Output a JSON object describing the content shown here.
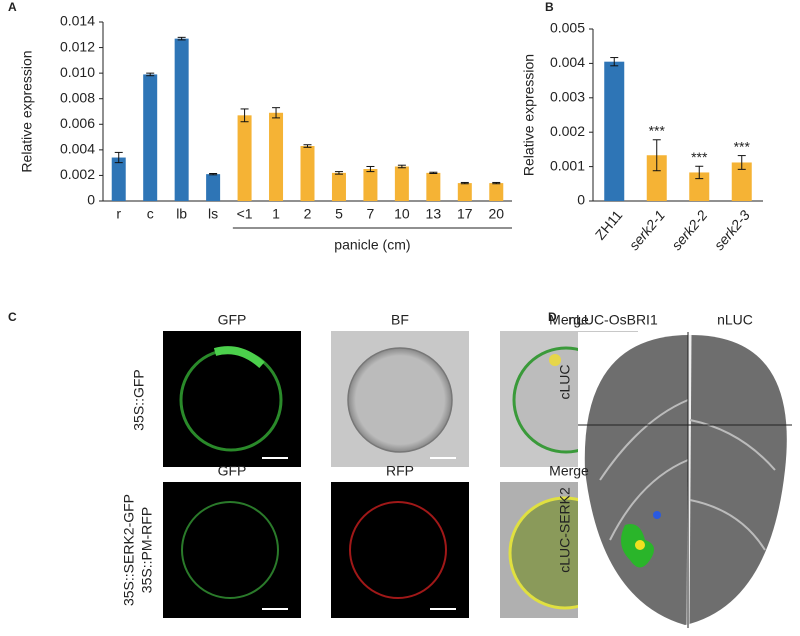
{
  "chart_data": [
    {
      "type": "bar",
      "panel": "A",
      "ylabel": "Relative expression",
      "group_label": "panicle (cm)",
      "categories": [
        "r",
        "c",
        "lb",
        "ls",
        "<1",
        "1",
        "2",
        "5",
        "7",
        "10",
        "13",
        "17",
        "20"
      ],
      "values": [
        0.0034,
        0.0099,
        0.0127,
        0.0021,
        0.0067,
        0.0069,
        0.0043,
        0.0022,
        0.0025,
        0.0027,
        0.0022,
        0.0014,
        0.0014
      ],
      "errors": [
        0.0004,
        0.0001,
        0.0001,
        5e-05,
        0.0005,
        0.0004,
        0.0001,
        0.0001,
        0.0002,
        0.0001,
        5e-05,
        5e-05,
        5e-05
      ],
      "colors": [
        "#2e75b6",
        "#2e75b6",
        "#2e75b6",
        "#2e75b6",
        "#f5b335",
        "#f5b335",
        "#f5b335",
        "#f5b335",
        "#f5b335",
        "#f5b335",
        "#f5b335",
        "#f5b335",
        "#f5b335"
      ],
      "ylim": [
        0,
        0.014
      ],
      "yticks": [
        0,
        0.002,
        0.004,
        0.006,
        0.008,
        {
          "value": 0.01,
          "label": "0.010"
        },
        0.012,
        0.014
      ]
    },
    {
      "type": "bar",
      "panel": "B",
      "ylabel": "Relative expression",
      "categories": [
        "ZH11",
        "serk2-1",
        "serk2-2",
        "serk2-3"
      ],
      "values": [
        0.00405,
        0.00133,
        0.00083,
        0.00112
      ],
      "errors": [
        0.00012,
        0.00045,
        0.00018,
        0.0002
      ],
      "value_labels": [
        null,
        "***",
        "***",
        "***"
      ],
      "colors": [
        "#2e75b6",
        "#f5b335",
        "#f5b335",
        "#f5b335"
      ],
      "ylim": [
        0,
        0.005
      ],
      "yticks": [
        0,
        0.001,
        0.002,
        0.003,
        0.004,
        0.005
      ]
    }
  ],
  "panel_c": {
    "label": "C",
    "row1": {
      "headers": [
        "GFP",
        "BF",
        "Merge"
      ],
      "label": "35S::GFP"
    },
    "row2": {
      "headers": [
        "GFP",
        "RFP",
        "Merge"
      ],
      "label_lines": [
        "35S::SERK2-GFP",
        "35S::PM-RFP"
      ]
    }
  },
  "panel_d": {
    "label": "D",
    "columns": [
      "nLUC-OsBRI1",
      "nLUC"
    ],
    "rows": [
      "cLUC",
      "cLUC-SERK2"
    ]
  }
}
